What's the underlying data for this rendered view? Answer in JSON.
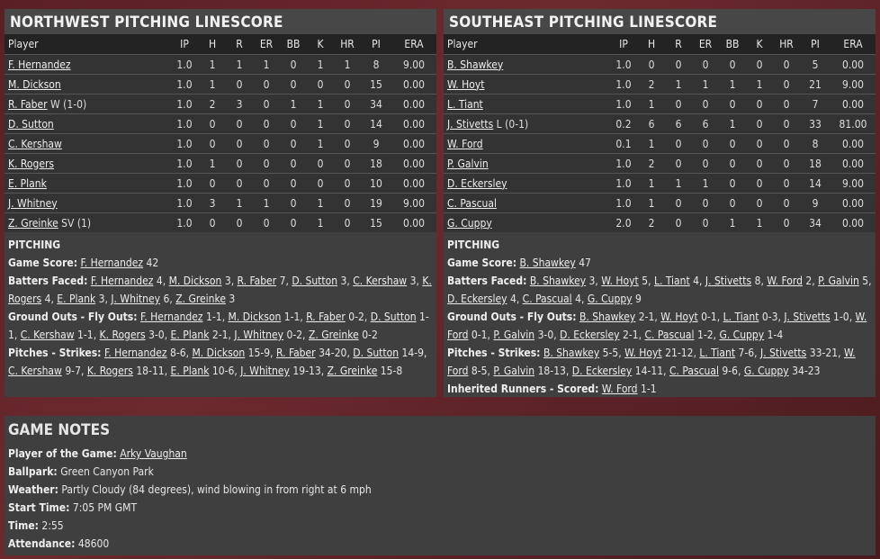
{
  "columns": [
    "Player",
    "IP",
    "H",
    "R",
    "ER",
    "BB",
    "K",
    "HR",
    "PI",
    "ERA"
  ],
  "northwest": {
    "title": "NORTHWEST PITCHING LINESCORE",
    "rows": [
      {
        "name": "F. Hernandez",
        "note": "",
        "stats": [
          "1.0",
          "1",
          "1",
          "1",
          "0",
          "1",
          "1",
          "8",
          "9.00"
        ]
      },
      {
        "name": "M. Dickson",
        "note": "",
        "stats": [
          "1.0",
          "1",
          "0",
          "0",
          "0",
          "0",
          "0",
          "15",
          "0.00"
        ]
      },
      {
        "name": "R. Faber",
        "note": " W (1-0)",
        "stats": [
          "1.0",
          "2",
          "3",
          "0",
          "1",
          "1",
          "0",
          "34",
          "0.00"
        ]
      },
      {
        "name": "D. Sutton",
        "note": "",
        "stats": [
          "1.0",
          "0",
          "0",
          "0",
          "0",
          "1",
          "0",
          "14",
          "0.00"
        ]
      },
      {
        "name": "C. Kershaw",
        "note": "",
        "stats": [
          "1.0",
          "0",
          "0",
          "0",
          "0",
          "1",
          "0",
          "9",
          "0.00"
        ]
      },
      {
        "name": "K. Rogers",
        "note": "",
        "stats": [
          "1.0",
          "1",
          "0",
          "0",
          "0",
          "0",
          "0",
          "18",
          "0.00"
        ]
      },
      {
        "name": "E. Plank",
        "note": "",
        "stats": [
          "1.0",
          "0",
          "0",
          "0",
          "0",
          "0",
          "0",
          "10",
          "0.00"
        ]
      },
      {
        "name": "J. Whitney",
        "note": "",
        "stats": [
          "1.0",
          "3",
          "1",
          "1",
          "0",
          "1",
          "0",
          "19",
          "9.00"
        ]
      },
      {
        "name": "Z. Greinke",
        "note": " SV (1)",
        "stats": [
          "1.0",
          "0",
          "0",
          "0",
          "0",
          "1",
          "0",
          "15",
          "0.00"
        ]
      }
    ],
    "pitching_heading": "PITCHING",
    "lines": [
      {
        "label": "Game Score:",
        "items": [
          {
            "n": "F. Hernandez",
            "v": "42"
          }
        ]
      },
      {
        "label": "Batters Faced:",
        "items": [
          {
            "n": "F. Hernandez",
            "v": "4"
          },
          {
            "n": "M. Dickson",
            "v": "3"
          },
          {
            "n": "R. Faber",
            "v": "7"
          },
          {
            "n": "D. Sutton",
            "v": "3"
          },
          {
            "n": "C. Kershaw",
            "v": "3"
          },
          {
            "n": "K. Rogers",
            "v": "4"
          },
          {
            "n": "E. Plank",
            "v": "3"
          },
          {
            "n": "J. Whitney",
            "v": "6"
          },
          {
            "n": "Z. Greinke",
            "v": "3"
          }
        ]
      },
      {
        "label": "Ground Outs - Fly Outs:",
        "items": [
          {
            "n": "F. Hernandez",
            "v": "1-1"
          },
          {
            "n": "M. Dickson",
            "v": "1-1"
          },
          {
            "n": "R. Faber",
            "v": "0-2"
          },
          {
            "n": "D. Sutton",
            "v": "1-1"
          },
          {
            "n": "C. Kershaw",
            "v": "1-1"
          },
          {
            "n": "K. Rogers",
            "v": "3-0"
          },
          {
            "n": "E. Plank",
            "v": "2-1"
          },
          {
            "n": "J. Whitney",
            "v": "0-2"
          },
          {
            "n": "Z. Greinke",
            "v": "0-2"
          }
        ]
      },
      {
        "label": "Pitches - Strikes:",
        "items": [
          {
            "n": "F. Hernandez",
            "v": "8-6"
          },
          {
            "n": "M. Dickson",
            "v": "15-9"
          },
          {
            "n": "R. Faber",
            "v": "34-20"
          },
          {
            "n": "D. Sutton",
            "v": "14-9"
          },
          {
            "n": "C. Kershaw",
            "v": "9-7"
          },
          {
            "n": "K. Rogers",
            "v": "18-11"
          },
          {
            "n": "E. Plank",
            "v": "10-6"
          },
          {
            "n": "J. Whitney",
            "v": "19-13"
          },
          {
            "n": "Z. Greinke",
            "v": "15-8"
          }
        ]
      }
    ]
  },
  "southeast": {
    "title": "SOUTHEAST PITCHING LINESCORE",
    "rows": [
      {
        "name": "B. Shawkey",
        "note": "",
        "stats": [
          "1.0",
          "0",
          "0",
          "0",
          "0",
          "0",
          "0",
          "5",
          "0.00"
        ]
      },
      {
        "name": "W. Hoyt",
        "note": "",
        "stats": [
          "1.0",
          "2",
          "1",
          "1",
          "1",
          "1",
          "0",
          "21",
          "9.00"
        ]
      },
      {
        "name": "L. Tiant",
        "note": "",
        "stats": [
          "1.0",
          "1",
          "0",
          "0",
          "0",
          "0",
          "0",
          "7",
          "0.00"
        ]
      },
      {
        "name": "J. Stivetts",
        "note": " L (0-1)",
        "stats": [
          "0.2",
          "6",
          "6",
          "6",
          "1",
          "0",
          "0",
          "33",
          "81.00"
        ]
      },
      {
        "name": "W. Ford",
        "note": "",
        "stats": [
          "0.1",
          "1",
          "0",
          "0",
          "0",
          "0",
          "0",
          "8",
          "0.00"
        ]
      },
      {
        "name": "P. Galvin",
        "note": "",
        "stats": [
          "1.0",
          "2",
          "0",
          "0",
          "0",
          "0",
          "0",
          "18",
          "0.00"
        ]
      },
      {
        "name": "D. Eckersley",
        "note": "",
        "stats": [
          "1.0",
          "1",
          "1",
          "1",
          "0",
          "0",
          "0",
          "14",
          "9.00"
        ]
      },
      {
        "name": "C. Pascual",
        "note": "",
        "stats": [
          "1.0",
          "1",
          "0",
          "0",
          "0",
          "0",
          "0",
          "9",
          "0.00"
        ]
      },
      {
        "name": "G. Cuppy",
        "note": "",
        "stats": [
          "2.0",
          "2",
          "0",
          "0",
          "1",
          "1",
          "0",
          "34",
          "0.00"
        ]
      }
    ],
    "pitching_heading": "PITCHING",
    "lines": [
      {
        "label": "Game Score:",
        "items": [
          {
            "n": "B. Shawkey",
            "v": "47"
          }
        ]
      },
      {
        "label": "Batters Faced:",
        "items": [
          {
            "n": "B. Shawkey",
            "v": "3"
          },
          {
            "n": "W. Hoyt",
            "v": "5"
          },
          {
            "n": "L. Tiant",
            "v": "4"
          },
          {
            "n": "J. Stivetts",
            "v": "8"
          },
          {
            "n": "W. Ford",
            "v": "2"
          },
          {
            "n": "P. Galvin",
            "v": "5"
          },
          {
            "n": "D. Eckersley",
            "v": "4"
          },
          {
            "n": "C. Pascual",
            "v": "4"
          },
          {
            "n": "G. Cuppy",
            "v": "9"
          }
        ]
      },
      {
        "label": "Ground Outs - Fly Outs:",
        "items": [
          {
            "n": "B. Shawkey",
            "v": "2-1"
          },
          {
            "n": "W. Hoyt",
            "v": "0-1"
          },
          {
            "n": "L. Tiant",
            "v": "0-3"
          },
          {
            "n": "J. Stivetts",
            "v": "1-0"
          },
          {
            "n": "W. Ford",
            "v": "0-1"
          },
          {
            "n": "P. Galvin",
            "v": "3-0"
          },
          {
            "n": "D. Eckersley",
            "v": "2-1"
          },
          {
            "n": "C. Pascual",
            "v": "1-2"
          },
          {
            "n": "G. Cuppy",
            "v": "1-4"
          }
        ]
      },
      {
        "label": "Pitches - Strikes:",
        "items": [
          {
            "n": "B. Shawkey",
            "v": "5-5"
          },
          {
            "n": "W. Hoyt",
            "v": "21-12"
          },
          {
            "n": "L. Tiant",
            "v": "7-6"
          },
          {
            "n": "J. Stivetts",
            "v": "33-21"
          },
          {
            "n": "W. Ford",
            "v": "8-5"
          },
          {
            "n": "P. Galvin",
            "v": "18-13"
          },
          {
            "n": "D. Eckersley",
            "v": "14-11"
          },
          {
            "n": "C. Pascual",
            "v": "9-6"
          },
          {
            "n": "G. Cuppy",
            "v": "34-23"
          }
        ]
      },
      {
        "label": "Inherited Runners - Scored:",
        "items": [
          {
            "n": "W. Ford",
            "v": "1-1"
          }
        ]
      }
    ]
  },
  "game_notes": {
    "title": "GAME NOTES",
    "potg_label": "Player of the Game:",
    "potg": "Arky Vaughan",
    "ballpark_label": "Ballpark:",
    "ballpark": "Green Canyon Park",
    "weather_label": "Weather:",
    "weather": "Partly Cloudy (84 degrees), wind blowing in from right at 6 mph",
    "start_label": "Start Time:",
    "start": "7:05 PM GMT",
    "time_label": "Time:",
    "time": "2:55",
    "attendance_label": "Attendance:",
    "attendance": "48600"
  }
}
